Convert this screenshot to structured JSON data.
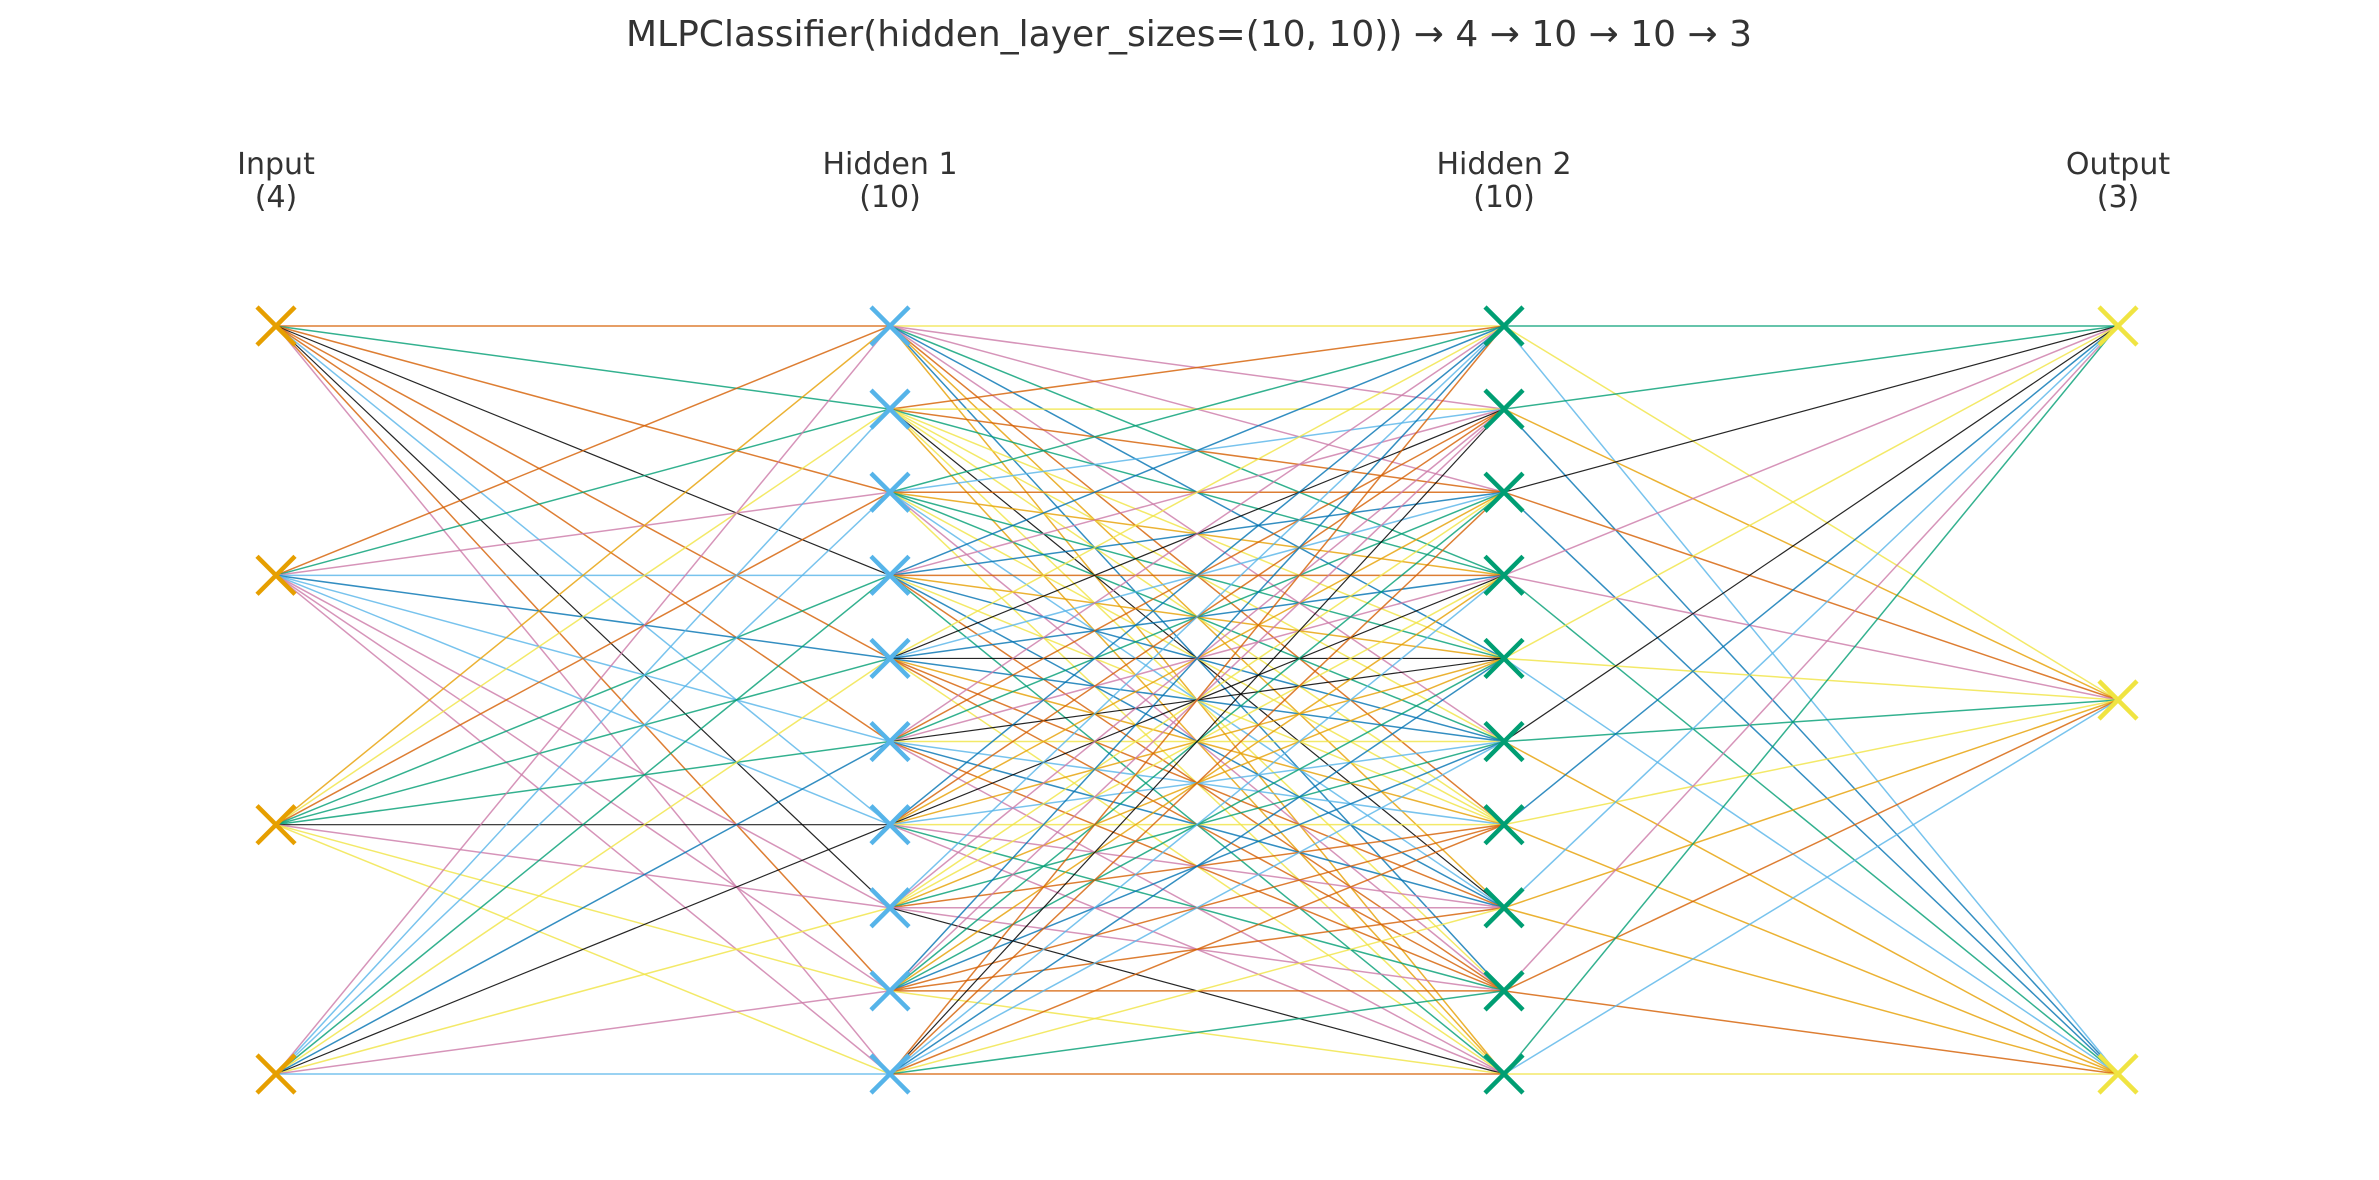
{
  "title": "MLPClassifier(hidden_layer_sizes=(10, 10))  →  4 → 10 → 10 → 3",
  "layers": [
    {
      "name": "Input",
      "count_label": "(4)",
      "size": 4,
      "color": "#E69F00"
    },
    {
      "name": "Hidden 1",
      "count_label": "(10)",
      "size": 10,
      "color": "#56B4E9"
    },
    {
      "name": "Hidden 2",
      "count_label": "(10)",
      "size": 10,
      "color": "#009E73"
    },
    {
      "name": "Output",
      "count_label": "(3)",
      "size": 3,
      "color": "#F0E442"
    }
  ],
  "node_marker": "x-marker",
  "connection_palette": [
    "#E69F00",
    "#56B4E9",
    "#009E73",
    "#F0E442",
    "#0072B2",
    "#D55E00",
    "#CC79A7",
    "#000000"
  ],
  "connections": "fully-connected between adjacent layers"
}
